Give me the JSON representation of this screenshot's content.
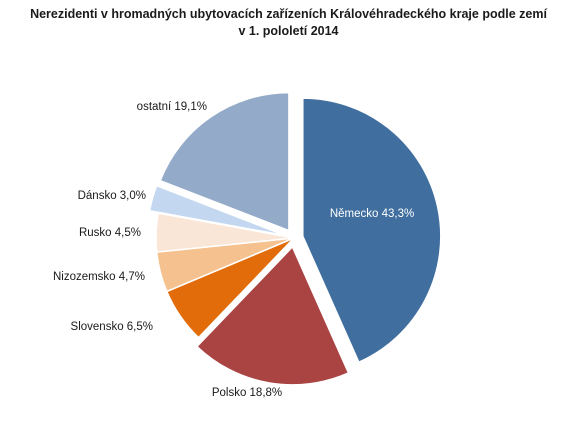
{
  "chart_data": {
    "type": "pie",
    "title_lines": [
      "Nerezidenti v hromadných ubytovacích zařízeních Královéhradeckého kraje podle zemí",
      "v 1. pololetí 2014"
    ],
    "unit": "%",
    "slices": [
      {
        "name": "Německo",
        "value": 43.3,
        "label": "Německo 43,3%",
        "color": "#3F6E9F",
        "exploded": true,
        "label_inside": true
      },
      {
        "name": "Polsko",
        "value": 18.8,
        "label": "Polsko 18,8%",
        "color": "#A94442",
        "exploded": true,
        "label_inside": false
      },
      {
        "name": "Slovensko",
        "value": 6.5,
        "label": "Slovensko 6,5%",
        "color": "#E36C0A",
        "exploded": false,
        "label_inside": false
      },
      {
        "name": "Nizozemsko",
        "value": 4.7,
        "label": "Nizozemsko 4,7%",
        "color": "#F5C18F",
        "exploded": false,
        "label_inside": false
      },
      {
        "name": "Rusko",
        "value": 4.5,
        "label": "Rusko 4,5%",
        "color": "#FAE6D6",
        "exploded": false,
        "label_inside": false
      },
      {
        "name": "Dánsko",
        "value": 3.0,
        "label": "Dánsko 3,0%",
        "color": "#C3D7F0",
        "exploded": true,
        "label_inside": false
      },
      {
        "name": "ostatní",
        "value": 19.1,
        "label": "ostatní 19,1%",
        "color": "#93ABC9",
        "exploded": true,
        "label_inside": false
      }
    ],
    "legend": "none"
  }
}
